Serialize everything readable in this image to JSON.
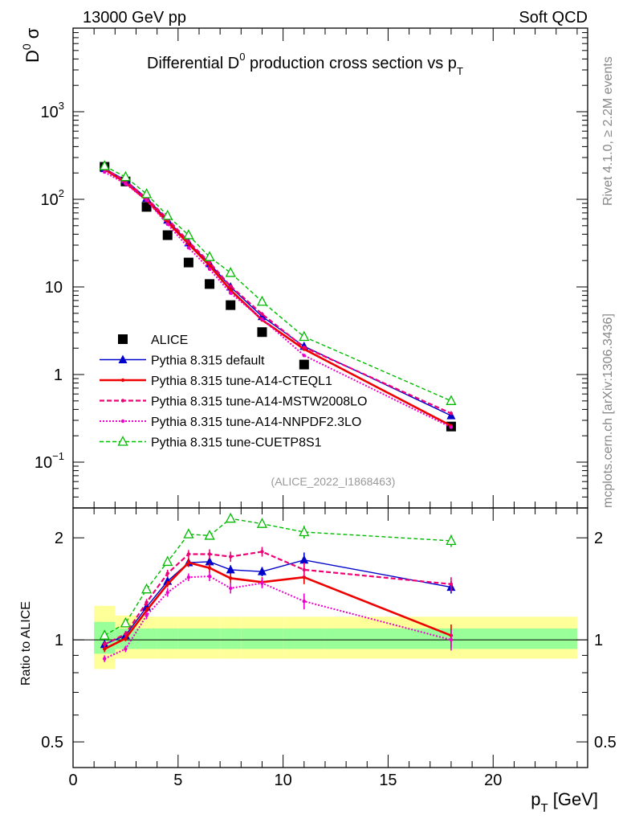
{
  "header": {
    "left": "13000 GeV pp",
    "right": "Soft QCD",
    "side_top": "Rivet 4.1.0, ≥ 2.2M events",
    "side_bottom": "mcplots.cern.ch [arXiv:1306.3436]",
    "analysis_tag": "(ALICE_2022_I1868463)"
  },
  "colors": {
    "alice": "#000000",
    "default": "#0000cc",
    "cteql1": "#ee0000",
    "mstw": "#ee0077",
    "nnpdf": "#ee00cc",
    "cuetp8s1": "#00bb00",
    "band_inner": "#99ff99",
    "band_outer": "#ffff99"
  },
  "chart_data": [
    {
      "type": "scatter",
      "panel": "main",
      "title_main": "Differential D",
      "title_sup": "0",
      "title_rest": " production cross section vs p",
      "title_sub": "T",
      "ylabel_main": "D",
      "ylabel_sup": "0",
      "ylabel_rest": " σ",
      "yscale": "log",
      "ylim": [
        0.03,
        9000
      ],
      "xlim": [
        0,
        24.5
      ],
      "yticks": [
        {
          "value": 0.1,
          "base": "10",
          "exp": "−1"
        },
        {
          "value": 1,
          "base": "1",
          "exp": ""
        },
        {
          "value": 10,
          "base": "10",
          "exp": ""
        },
        {
          "value": 100,
          "base": "10",
          "exp": "2"
        },
        {
          "value": 1000,
          "base": "10",
          "exp": "3"
        }
      ],
      "x": [
        1.5,
        2.5,
        3.5,
        4.5,
        5.5,
        6.5,
        7.5,
        9.0,
        11.0,
        18.0
      ],
      "series": [
        {
          "key": "alice",
          "name": "ALICE",
          "style": "marker-square",
          "values": [
            235,
            160,
            82,
            39,
            19,
            10.8,
            6.2,
            3.05,
            1.3,
            0.255
          ]
        },
        {
          "key": "default",
          "name": "Pythia 8.315 default",
          "style": "line-triangle",
          "values": [
            225,
            165,
            103,
            58,
            32,
            18.5,
            10,
            4.6,
            2.1,
            0.34
          ]
        },
        {
          "key": "cteql1",
          "name": "Pythia 8.315 tune-A14-CTEQL1",
          "style": "line-thick",
          "values": [
            220,
            155,
            98,
            55,
            31,
            17.5,
            9.2,
            4.2,
            1.95,
            0.26
          ]
        },
        {
          "key": "mstw",
          "name": "Pythia 8.315 tune-A14-MSTW2008LO",
          "style": "line-dashed",
          "values": [
            225,
            160,
            103,
            60,
            33,
            19,
            10.2,
            4.9,
            2.05,
            0.36
          ]
        },
        {
          "key": "nnpdf",
          "name": "Pythia 8.315 tune-A14-NNPDF2.3LO",
          "style": "line-dotted",
          "values": [
            205,
            150,
            97,
            52,
            28,
            16,
            8.5,
            4.3,
            1.65,
            0.25
          ]
        },
        {
          "key": "cuetp8s1",
          "name": "Pythia 8.315 tune-CUETP8S1",
          "style": "line-dashed-open-triangle",
          "values": [
            240,
            180,
            115,
            65,
            39,
            22,
            14.5,
            6.8,
            2.7,
            0.5
          ]
        }
      ]
    },
    {
      "type": "line",
      "panel": "ratio",
      "ylabel": "Ratio to ALICE",
      "yscale": "log",
      "ylim": [
        0.42,
        2.45
      ],
      "xlim": [
        0,
        24.5
      ],
      "xlabel_main": "p",
      "xlabel_sub": "T",
      "xlabel_rest": " [GeV]",
      "xticks": [
        0,
        5,
        10,
        15,
        20
      ],
      "yticks": [
        {
          "value": 0.5,
          "label": "0.5"
        },
        {
          "value": 1,
          "label": "1"
        },
        {
          "value": 2,
          "label": "2"
        }
      ],
      "x": [
        1.5,
        2.5,
        3.5,
        4.5,
        5.5,
        6.5,
        7.5,
        9.0,
        11.0,
        18.0
      ],
      "band_bins": [
        1,
        2,
        3,
        4,
        5,
        6,
        7,
        8,
        10,
        12,
        24
      ],
      "band_inner": [
        [
          0.91,
          1.13
        ],
        [
          0.94,
          1.08
        ],
        [
          0.94,
          1.08
        ],
        [
          0.94,
          1.08
        ],
        [
          0.94,
          1.08
        ],
        [
          0.94,
          1.08
        ],
        [
          0.94,
          1.08
        ],
        [
          0.94,
          1.08
        ],
        [
          0.94,
          1.08
        ],
        [
          0.94,
          1.08
        ]
      ],
      "band_outer": [
        [
          0.82,
          1.26
        ],
        [
          0.88,
          1.18
        ],
        [
          0.88,
          1.17
        ],
        [
          0.88,
          1.17
        ],
        [
          0.88,
          1.17
        ],
        [
          0.88,
          1.17
        ],
        [
          0.88,
          1.17
        ],
        [
          0.88,
          1.17
        ],
        [
          0.88,
          1.17
        ],
        [
          0.88,
          1.17
        ]
      ],
      "series": [
        {
          "key": "default",
          "values": [
            0.97,
            1.03,
            1.25,
            1.49,
            1.69,
            1.7,
            1.61,
            1.59,
            1.72,
            1.43
          ],
          "err": [
            0.02,
            0.02,
            0.03,
            0.03,
            0.04,
            0.05,
            0.05,
            0.05,
            0.09,
            0.06
          ]
        },
        {
          "key": "cteql1",
          "values": [
            0.94,
            1.01,
            1.22,
            1.46,
            1.69,
            1.63,
            1.52,
            1.48,
            1.53,
            1.03
          ],
          "err": [
            0.02,
            0.02,
            0.03,
            0.03,
            0.05,
            0.05,
            0.05,
            0.05,
            0.07,
            0.08
          ]
        },
        {
          "key": "mstw",
          "values": [
            0.97,
            1.04,
            1.29,
            1.57,
            1.79,
            1.79,
            1.76,
            1.82,
            1.61,
            1.46
          ],
          "err": [
            0.02,
            0.02,
            0.03,
            0.04,
            0.05,
            0.06,
            0.06,
            0.06,
            0.08,
            0.07
          ]
        },
        {
          "key": "nnpdf",
          "values": [
            0.88,
            0.94,
            1.18,
            1.38,
            1.53,
            1.54,
            1.42,
            1.47,
            1.3,
            1.0
          ],
          "err": [
            0.02,
            0.02,
            0.03,
            0.04,
            0.04,
            0.05,
            0.05,
            0.05,
            0.07,
            0.07
          ]
        },
        {
          "key": "cuetp8s1",
          "values": [
            1.03,
            1.12,
            1.41,
            1.7,
            2.05,
            2.03,
            2.28,
            2.2,
            2.08,
            1.96
          ],
          "err": [
            0.02,
            0.02,
            0.03,
            0.04,
            0.05,
            0.05,
            0.06,
            0.06,
            0.09,
            0.08
          ]
        }
      ]
    }
  ]
}
